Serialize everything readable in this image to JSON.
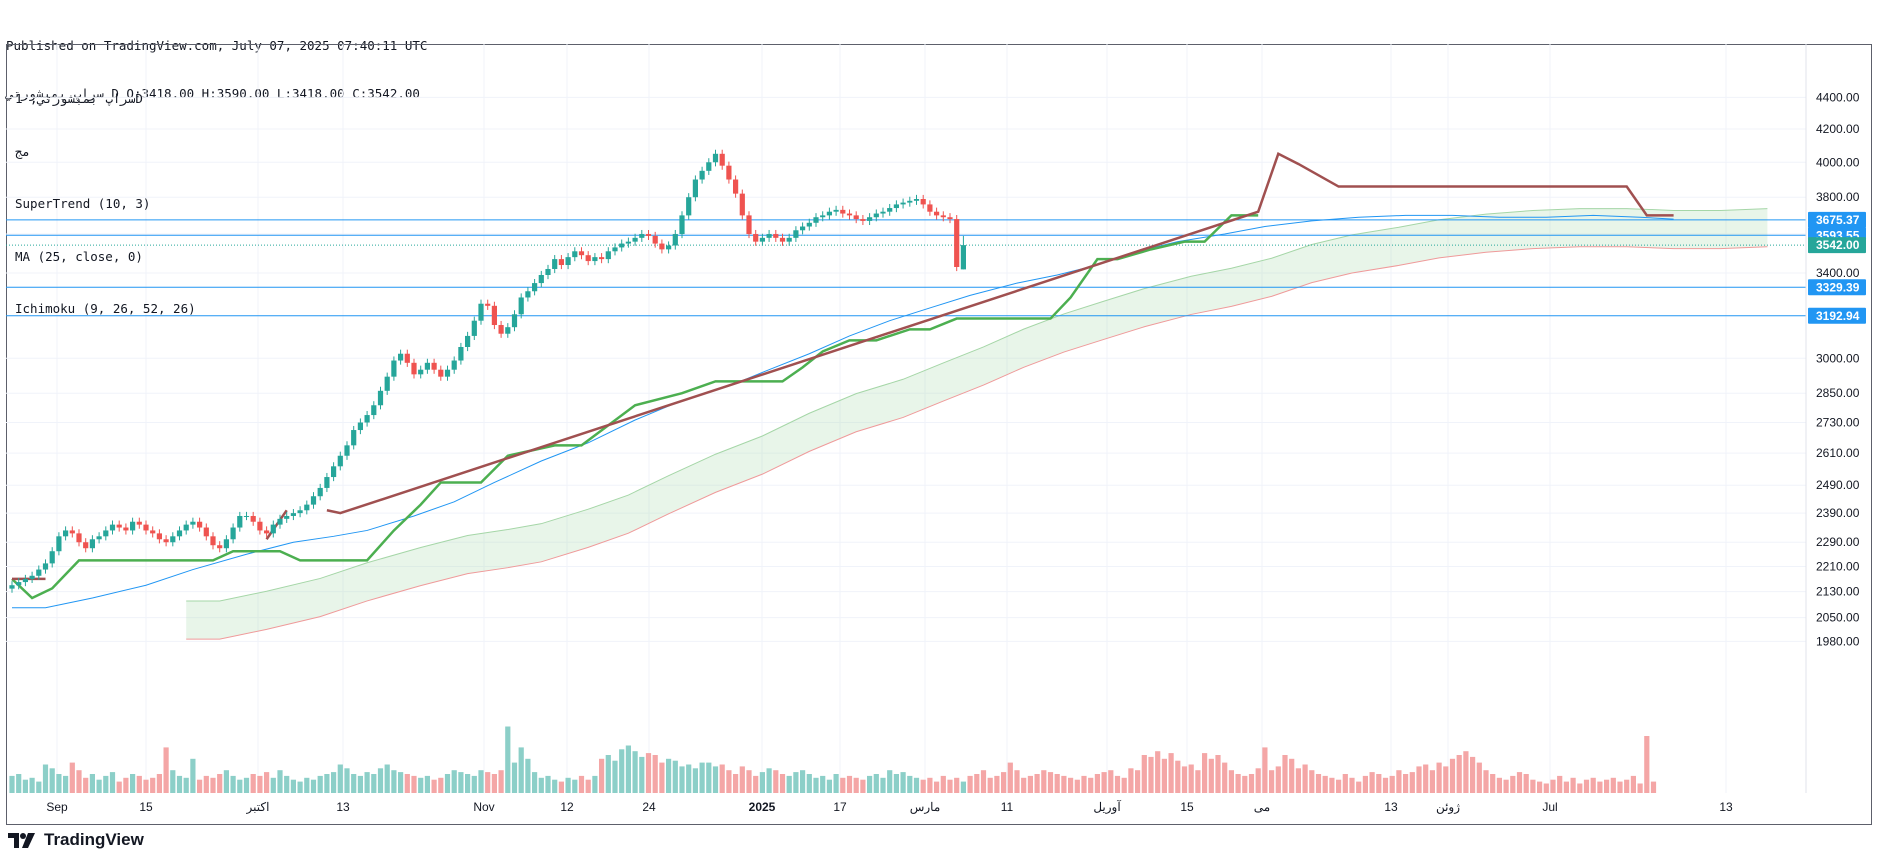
{
  "header": {
    "published_line": "Published on TradingView.com, July 07, 2025 07:40:11 UTC",
    "ohlc_line": "سراپ بمبشورتي D O:3418.00 H:3590.00 L:3418.00 C:3542.00"
  },
  "legend": {
    "symbol": "سراپ بمبشورتي, 1D",
    "exchange": "مج",
    "supertrend": "SuperTrend (10, 3)",
    "ma": "MA (25, close, 0)",
    "ichimoku": "Ichimoku (9, 26, 52, 26)"
  },
  "brand": {
    "name": "TradingView"
  },
  "colors": {
    "up": "#26a69a",
    "down": "#ef5350",
    "volume_up": "#8ccfc8",
    "volume_down": "#f4a6a6",
    "supertrend_up": "#4caf50",
    "supertrend_down": "#a05050",
    "ma": "#2196f3",
    "hline": "#2196f3",
    "last_price": "#26a69a",
    "kumo_green": "#a5d6a7",
    "kumo_red": "#ef9a9a"
  },
  "chart_data": {
    "type": "candlestick",
    "y_scale": "log",
    "ylim": [
      2040,
      4520
    ],
    "y_ticks": [
      4400,
      4200,
      4000,
      3800,
      3600,
      3400,
      3000,
      2850,
      2730,
      2610,
      2490,
      2390,
      2290,
      2210,
      2130,
      2050,
      1980
    ],
    "x_ticks": [
      "Sep",
      "15",
      "اکتبر",
      "13",
      "Nov",
      "12",
      "24",
      "2025",
      "17",
      "مارس",
      "11",
      "آوریل",
      "15",
      "می",
      "13",
      "ژوئن",
      "Jul",
      "13"
    ],
    "x_ticks_bold": [
      "2025"
    ],
    "horizontal_levels": [
      3675.37,
      3593.55,
      3329.39,
      3192.94
    ],
    "last_price": 3542.0,
    "last_ohlc": {
      "open": 3418.0,
      "high": 3590.0,
      "low": 3418.0,
      "close": 3542.0
    },
    "candles_close": [
      2150,
      2160,
      2170,
      2180,
      2200,
      2220,
      2260,
      2310,
      2330,
      2320,
      2290,
      2270,
      2300,
      2310,
      2330,
      2350,
      2340,
      2330,
      2360,
      2350,
      2330,
      2320,
      2300,
      2290,
      2310,
      2330,
      2350,
      2360,
      2340,
      2310,
      2280,
      2270,
      2300,
      2340,
      2380,
      2380,
      2360,
      2330,
      2320,
      2350,
      2370,
      2380,
      2390,
      2400,
      2420,
      2450,
      2480,
      2520,
      2560,
      2600,
      2640,
      2700,
      2730,
      2760,
      2800,
      2860,
      2920,
      2990,
      3020,
      2980,
      2930,
      2950,
      2980,
      2950,
      2920,
      2950,
      2990,
      3050,
      3100,
      3170,
      3250,
      3240,
      3150,
      3110,
      3140,
      3200,
      3280,
      3310,
      3350,
      3390,
      3420,
      3470,
      3440,
      3480,
      3510,
      3490,
      3460,
      3480,
      3470,
      3510,
      3530,
      3550,
      3560,
      3580,
      3600,
      3590,
      3550,
      3520,
      3540,
      3600,
      3700,
      3800,
      3900,
      3950,
      4000,
      4050,
      3980,
      3900,
      3820,
      3700,
      3600,
      3560,
      3580,
      3600,
      3580,
      3560,
      3580,
      3620,
      3640,
      3660,
      3690,
      3700,
      3720,
      3730,
      3710,
      3700,
      3680,
      3670,
      3690,
      3710,
      3720,
      3740,
      3760,
      3770,
      3780,
      3790,
      3760,
      3720,
      3700,
      3690,
      3680,
      3430,
      3542
    ],
    "supertrend_up": [
      [
        0,
        2170
      ],
      [
        3,
        2110
      ],
      [
        6,
        2140
      ],
      [
        10,
        2230
      ],
      [
        30,
        2230
      ],
      [
        33,
        2260
      ],
      [
        40,
        2260
      ],
      [
        43,
        2230
      ],
      [
        53,
        2230
      ],
      [
        57,
        2330
      ],
      [
        61,
        2420
      ],
      [
        64,
        2500
      ],
      [
        70,
        2500
      ],
      [
        74,
        2600
      ],
      [
        81,
        2640
      ],
      [
        85,
        2640
      ],
      [
        93,
        2800
      ],
      [
        100,
        2850
      ],
      [
        105,
        2900
      ],
      [
        115,
        2900
      ],
      [
        118,
        2960
      ],
      [
        121,
        3030
      ],
      [
        125,
        3080
      ],
      [
        129,
        3080
      ],
      [
        134,
        3130
      ],
      [
        137,
        3130
      ],
      [
        141,
        3180
      ],
      [
        147,
        3180
      ],
      [
        155,
        3180
      ],
      [
        158,
        3280
      ],
      [
        162,
        3470
      ],
      [
        165,
        3470
      ],
      [
        170,
        3520
      ],
      [
        175,
        3560
      ],
      [
        178,
        3560
      ],
      [
        182,
        3700
      ],
      [
        186,
        3700
      ]
    ],
    "supertrend_down": [
      [
        0,
        2170
      ],
      [
        5,
        2170
      ],
      [
        38,
        2300
      ],
      [
        41,
        2400
      ],
      [
        47,
        2400
      ],
      [
        49,
        2390
      ],
      [
        186,
        3720
      ],
      [
        189,
        4050
      ],
      [
        192,
        3990
      ],
      [
        198,
        3860
      ],
      [
        235,
        3860
      ],
      [
        241,
        3860
      ],
      [
        244,
        3700
      ],
      [
        248,
        3700
      ]
    ],
    "ma_line": [
      [
        0,
        2080
      ],
      [
        5,
        2080
      ],
      [
        12,
        2110
      ],
      [
        20,
        2150
      ],
      [
        27,
        2200
      ],
      [
        35,
        2250
      ],
      [
        42,
        2290
      ],
      [
        48,
        2310
      ],
      [
        53,
        2330
      ],
      [
        60,
        2380
      ],
      [
        66,
        2430
      ],
      [
        72,
        2500
      ],
      [
        79,
        2580
      ],
      [
        86,
        2650
      ],
      [
        93,
        2740
      ],
      [
        100,
        2820
      ],
      [
        107,
        2880
      ],
      [
        113,
        2950
      ],
      [
        119,
        3020
      ],
      [
        125,
        3100
      ],
      [
        131,
        3170
      ],
      [
        137,
        3230
      ],
      [
        143,
        3290
      ],
      [
        150,
        3350
      ],
      [
        156,
        3390
      ],
      [
        162,
        3440
      ],
      [
        168,
        3510
      ],
      [
        174,
        3560
      ],
      [
        181,
        3600
      ],
      [
        187,
        3640
      ],
      [
        194,
        3670
      ],
      [
        201,
        3690
      ],
      [
        208,
        3700
      ],
      [
        215,
        3700
      ],
      [
        222,
        3690
      ],
      [
        229,
        3690
      ],
      [
        236,
        3700
      ],
      [
        243,
        3690
      ],
      [
        248,
        3680
      ]
    ],
    "volume": [
      0.09,
      0.1,
      0.07,
      0.08,
      0.06,
      0.15,
      0.13,
      0.1,
      0.09,
      0.16,
      0.12,
      0.08,
      0.1,
      0.07,
      0.09,
      0.11,
      0.06,
      0.08,
      0.1,
      0.09,
      0.07,
      0.08,
      0.1,
      0.24,
      0.12,
      0.09,
      0.08,
      0.18,
      0.07,
      0.09,
      0.08,
      0.1,
      0.12,
      0.09,
      0.07,
      0.08,
      0.1,
      0.09,
      0.11,
      0.08,
      0.12,
      0.09,
      0.07,
      0.06,
      0.08,
      0.07,
      0.09,
      0.1,
      0.11,
      0.15,
      0.13,
      0.1,
      0.09,
      0.11,
      0.1,
      0.13,
      0.15,
      0.12,
      0.11,
      0.1,
      0.09,
      0.08,
      0.09,
      0.07,
      0.08,
      0.1,
      0.12,
      0.11,
      0.1,
      0.09,
      0.12,
      0.11,
      0.1,
      0.12,
      0.35,
      0.16,
      0.24,
      0.18,
      0.11,
      0.08,
      0.09,
      0.07,
      0.06,
      0.08,
      0.07,
      0.09,
      0.07,
      0.09,
      0.18,
      0.2,
      0.17,
      0.23,
      0.25,
      0.22,
      0.19,
      0.21,
      0.2,
      0.16,
      0.18,
      0.17,
      0.14,
      0.15,
      0.13,
      0.16,
      0.16,
      0.14,
      0.15,
      0.12,
      0.1,
      0.14,
      0.12,
      0.09,
      0.11,
      0.13,
      0.12,
      0.1,
      0.09,
      0.11,
      0.12,
      0.1,
      0.08,
      0.09,
      0.07,
      0.1,
      0.08,
      0.09,
      0.08,
      0.07,
      0.09,
      0.1,
      0.08,
      0.12,
      0.1,
      0.11,
      0.09,
      0.08,
      0.07,
      0.08,
      0.06,
      0.09,
      0.07,
      0.08,
      0.06,
      0.09,
      0.1,
      0.12,
      0.08,
      0.09,
      0.11,
      0.16,
      0.12,
      0.08,
      0.09,
      0.1,
      0.12,
      0.11,
      0.1,
      0.09,
      0.08,
      0.07,
      0.09,
      0.08,
      0.1,
      0.11,
      0.12,
      0.09,
      0.08,
      0.13,
      0.12,
      0.2,
      0.19,
      0.22,
      0.18,
      0.21,
      0.17,
      0.14,
      0.15,
      0.12,
      0.21,
      0.18,
      0.2,
      0.16,
      0.12,
      0.1,
      0.09,
      0.1,
      0.13,
      0.24,
      0.12,
      0.14,
      0.2,
      0.18,
      0.13,
      0.15,
      0.12,
      0.1,
      0.09,
      0.08,
      0.07,
      0.1,
      0.08,
      0.06,
      0.09,
      0.11,
      0.1,
      0.08,
      0.09,
      0.12,
      0.1,
      0.11,
      0.14,
      0.15,
      0.12,
      0.16,
      0.14,
      0.18,
      0.2,
      0.22,
      0.19,
      0.16,
      0.12,
      0.1,
      0.08,
      0.07,
      0.09,
      0.11,
      0.1,
      0.07,
      0.06,
      0.05,
      0.07,
      0.09,
      0.06,
      0.08,
      0.05,
      0.07,
      0.08,
      0.06,
      0.07,
      0.08,
      0.06,
      0.07,
      0.09,
      0.05,
      0.3,
      0.06
    ]
  }
}
